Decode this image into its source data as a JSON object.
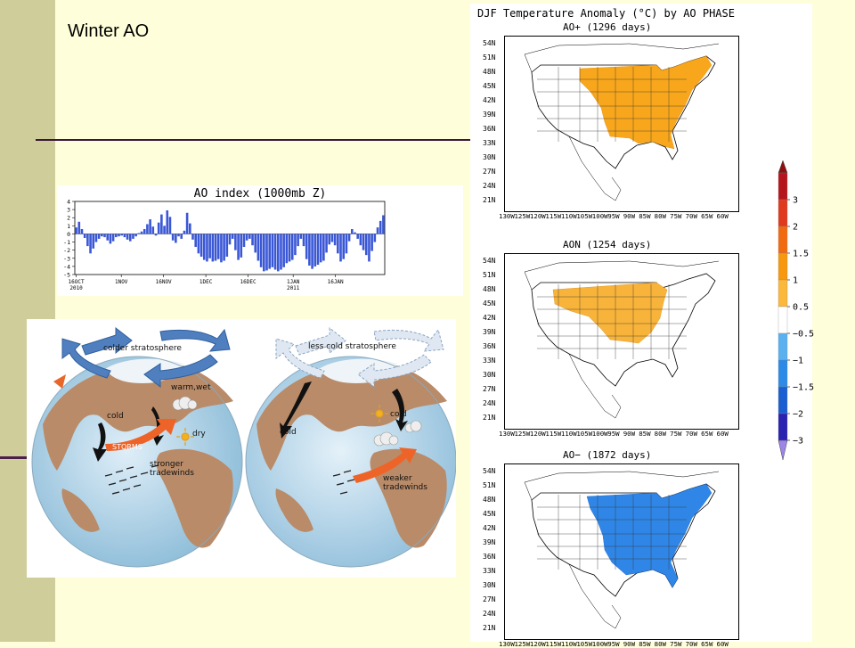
{
  "slide": {
    "title": "Winter AO"
  },
  "ao_index": {
    "title": "AO index (1000mb Z)",
    "y_ticks": [
      "4",
      "3",
      "2",
      "1",
      "0",
      "-1",
      "-2",
      "-3",
      "-4",
      "-5"
    ],
    "x_ticks": [
      {
        "top": "16OCT",
        "bottom": "2010"
      },
      {
        "top": "1NOV",
        "bottom": ""
      },
      {
        "top": "16NOV",
        "bottom": ""
      },
      {
        "top": "1DEC",
        "bottom": ""
      },
      {
        "top": "16DEC",
        "bottom": ""
      },
      {
        "top": "1JAN",
        "bottom": "2011"
      },
      {
        "top": "16JAN",
        "bottom": ""
      }
    ],
    "values": [
      0.8,
      1.5,
      0.6,
      -0.5,
      -1.5,
      -2.4,
      -1.8,
      -1.0,
      -0.6,
      -0.3,
      -0.4,
      -0.8,
      -1.2,
      -0.9,
      -0.4,
      -0.3,
      -0.2,
      -0.4,
      -0.7,
      -0.9,
      -0.6,
      -0.3,
      0.1,
      0.3,
      0.6,
      1.2,
      1.8,
      0.9,
      -0.2,
      1.4,
      2.4,
      1.0,
      2.9,
      2.1,
      -0.8,
      -1.1,
      -0.3,
      -0.6,
      0.4,
      2.6,
      1.3,
      -0.7,
      -1.6,
      -2.4,
      -2.8,
      -3.2,
      -3.4,
      -3.0,
      -3.4,
      -3.3,
      -3.1,
      -3.5,
      -3.3,
      -2.8,
      -1.3,
      -0.6,
      -2.0,
      -3.2,
      -2.9,
      -1.6,
      -0.8,
      -0.6,
      -1.4,
      -2.3,
      -3.3,
      -4.1,
      -4.6,
      -4.5,
      -4.3,
      -4.1,
      -4.4,
      -4.6,
      -4.4,
      -4.1,
      -3.6,
      -3.4,
      -3.2,
      -2.6,
      -1.5,
      -0.6,
      -1.5,
      -3.1,
      -3.9,
      -4.3,
      -4.0,
      -3.8,
      -3.5,
      -3.3,
      -2.3,
      -1.3,
      -1.0,
      -1.4,
      -2.4,
      -3.4,
      -3.1,
      -2.4,
      -0.9,
      0.6,
      0.2,
      -0.6,
      -1.4,
      -2.0,
      -2.6,
      -3.4,
      -2.1,
      -1.0,
      0.8,
      1.6,
      2.3
    ]
  },
  "globes": {
    "left": {
      "colder_stratosphere": "colder stratosphere",
      "warm_wet": "warm,wet",
      "cold": "cold",
      "storms": "STORMS",
      "dry": "dry",
      "tradewinds": "stronger\ntradewinds"
    },
    "right": {
      "less_cold_stratosphere": "less cold stratosphere",
      "cold_left": "cold",
      "cold_right": "cold",
      "tradewinds": "weaker\ntradewinds"
    }
  },
  "maps": {
    "title": "DJF Temperature Anomaly (°C) by AO PHASE",
    "panels": [
      {
        "subtitle": "AO+ (1296 days)",
        "sign": 1
      },
      {
        "subtitle": "AON (1254 days)",
        "sign": 0
      },
      {
        "subtitle": "AO− (1872 days)",
        "sign": -1
      }
    ],
    "lat_labels": [
      "54N",
      "51N",
      "48N",
      "45N",
      "42N",
      "39N",
      "36N",
      "33N",
      "30N",
      "27N",
      "24N",
      "21N"
    ],
    "lon_labels": [
      "130W",
      "125W",
      "120W",
      "115W",
      "110W",
      "105W",
      "100W",
      "95W",
      "90W",
      "85W",
      "80W",
      "75W",
      "70W",
      "65W",
      "60W"
    ]
  },
  "colorbar": {
    "labels": [
      "3",
      "2",
      "1.5",
      "1",
      "0.5",
      "−0.5",
      "−1",
      "−1.5",
      "−2",
      "−3"
    ],
    "colors": [
      "#b5161e",
      "#e03a1e",
      "#f26a0f",
      "#f8980f",
      "#fcb83a",
      "#ffffff",
      "#5bb0f0",
      "#2c8be6",
      "#1a5fd2",
      "#2a22b0",
      "#9d86e8"
    ],
    "top_color": "#8e1010"
  }
}
